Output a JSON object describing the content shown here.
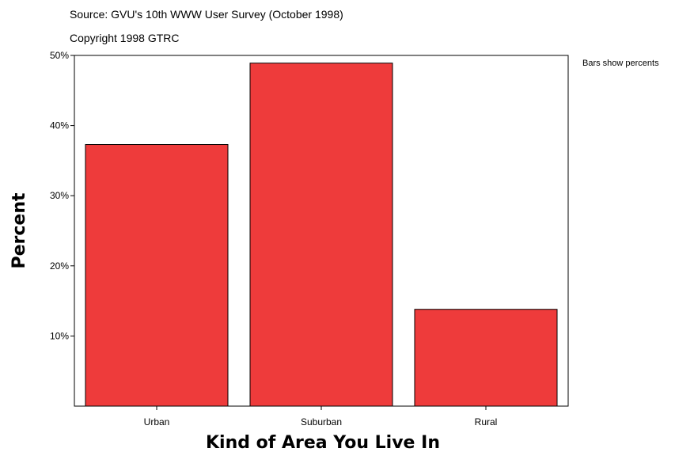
{
  "chart_data": {
    "type": "bar",
    "subtitle_lines": [
      "Source: GVU's 10th WWW User Survey (October 1998)",
      "Copyright 1998 GTRC"
    ],
    "note": "Bars show percents",
    "xlabel": "Kind of Area You Live In",
    "ylabel": "Percent",
    "categories": [
      "Urban",
      "Suburban",
      "Rural"
    ],
    "values": [
      37.3,
      48.9,
      13.8
    ],
    "ylim": [
      0,
      50
    ],
    "yticks": [
      10,
      20,
      30,
      40,
      50
    ],
    "ytick_labels": [
      "10%",
      "20%",
      "30%",
      "40%",
      "50%"
    ],
    "bar_color": "#ee3b3b",
    "grid": false
  }
}
